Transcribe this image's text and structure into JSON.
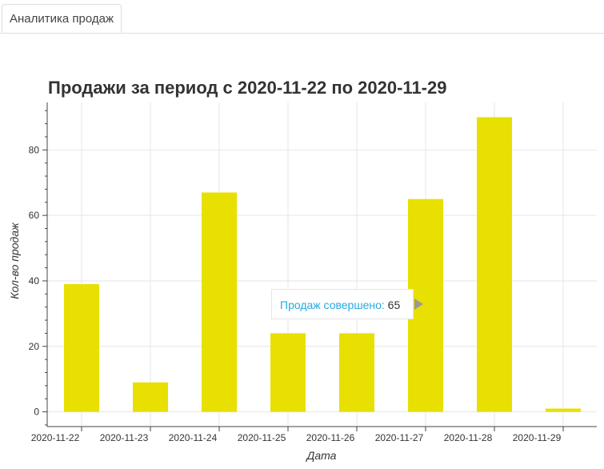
{
  "tabs": [
    {
      "label": "Аналитика продаж",
      "active": true
    }
  ],
  "tooltip": {
    "label": "Продаж совершено:",
    "value": "65"
  },
  "colors": {
    "bar": "#e8e000",
    "title": "#333333",
    "grid": "#e6e6e6",
    "axis": "#444444",
    "tooltip_label": "#26aae1"
  },
  "chart_data": {
    "type": "bar",
    "title": "Продажи за период с 2020-11-22 по 2020-11-29",
    "xlabel": "Дата",
    "ylabel": "Кол-во продаж",
    "categories": [
      "2020-11-22",
      "2020-11-23",
      "2020-11-24",
      "2020-11-25",
      "2020-11-26",
      "2020-11-27",
      "2020-11-28",
      "2020-11-29"
    ],
    "values": [
      39,
      9,
      67,
      24,
      24,
      65,
      90,
      1
    ],
    "ylim": [
      -4.5,
      94.5
    ],
    "yticks": [
      0,
      20,
      40,
      60,
      80
    ],
    "grid": true
  }
}
